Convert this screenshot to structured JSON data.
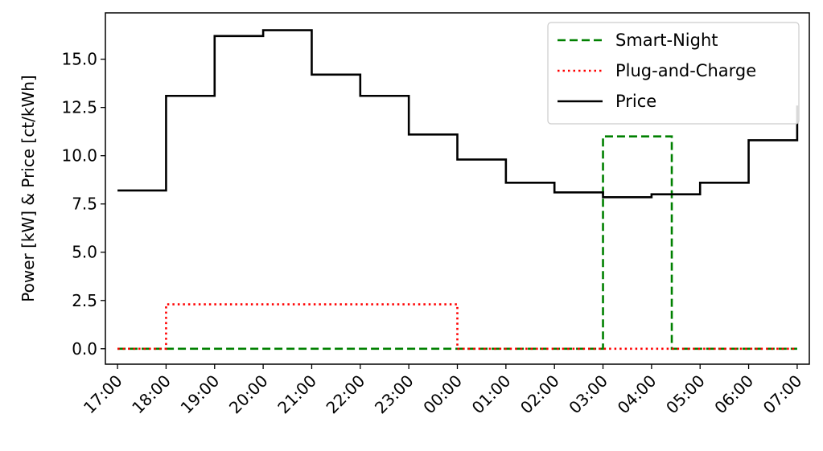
{
  "chart_data": {
    "type": "line",
    "title": "",
    "xlabel": "",
    "ylabel": "Power [kW] & Price [ct/kWh]",
    "x_ticks": [
      "17:00",
      "18:00",
      "19:00",
      "20:00",
      "21:00",
      "22:00",
      "23:00",
      "00:00",
      "01:00",
      "02:00",
      "03:00",
      "04:00",
      "05:00",
      "06:00",
      "07:00"
    ],
    "xlim": [
      "16:45",
      "07:15"
    ],
    "ylim": [
      -0.8,
      17.4
    ],
    "y_ticks": [
      "0.0",
      "2.5",
      "5.0",
      "7.5",
      "10.0",
      "12.5",
      "15.0"
    ],
    "y_tick_values": [
      0,
      2.5,
      5,
      7.5,
      10,
      12.5,
      15
    ],
    "grid": false,
    "legend_position": "top-right",
    "series": [
      {
        "name": "Smart-Night",
        "color": "#008000",
        "style": "dashed",
        "draw": "step-post",
        "x": [
          "17:00",
          "03:00",
          "04:25",
          "07:00"
        ],
        "y": [
          0,
          11.0,
          0,
          0
        ]
      },
      {
        "name": "Plug-and-Charge",
        "color": "#ff0000",
        "style": "dotted",
        "draw": "step-post",
        "x": [
          "17:00",
          "18:00",
          "00:00",
          "07:00"
        ],
        "y": [
          0,
          2.3,
          0,
          0
        ]
      },
      {
        "name": "Price",
        "color": "#000000",
        "style": "solid",
        "draw": "step-post",
        "x": [
          "17:00",
          "18:00",
          "19:00",
          "20:00",
          "21:00",
          "22:00",
          "23:00",
          "00:00",
          "01:00",
          "02:00",
          "03:00",
          "04:00",
          "05:00",
          "06:00",
          "07:00"
        ],
        "y": [
          8.2,
          13.1,
          16.2,
          16.5,
          14.2,
          13.1,
          11.1,
          9.8,
          8.6,
          8.1,
          7.85,
          8.0,
          8.6,
          10.8,
          12.6
        ]
      }
    ]
  }
}
